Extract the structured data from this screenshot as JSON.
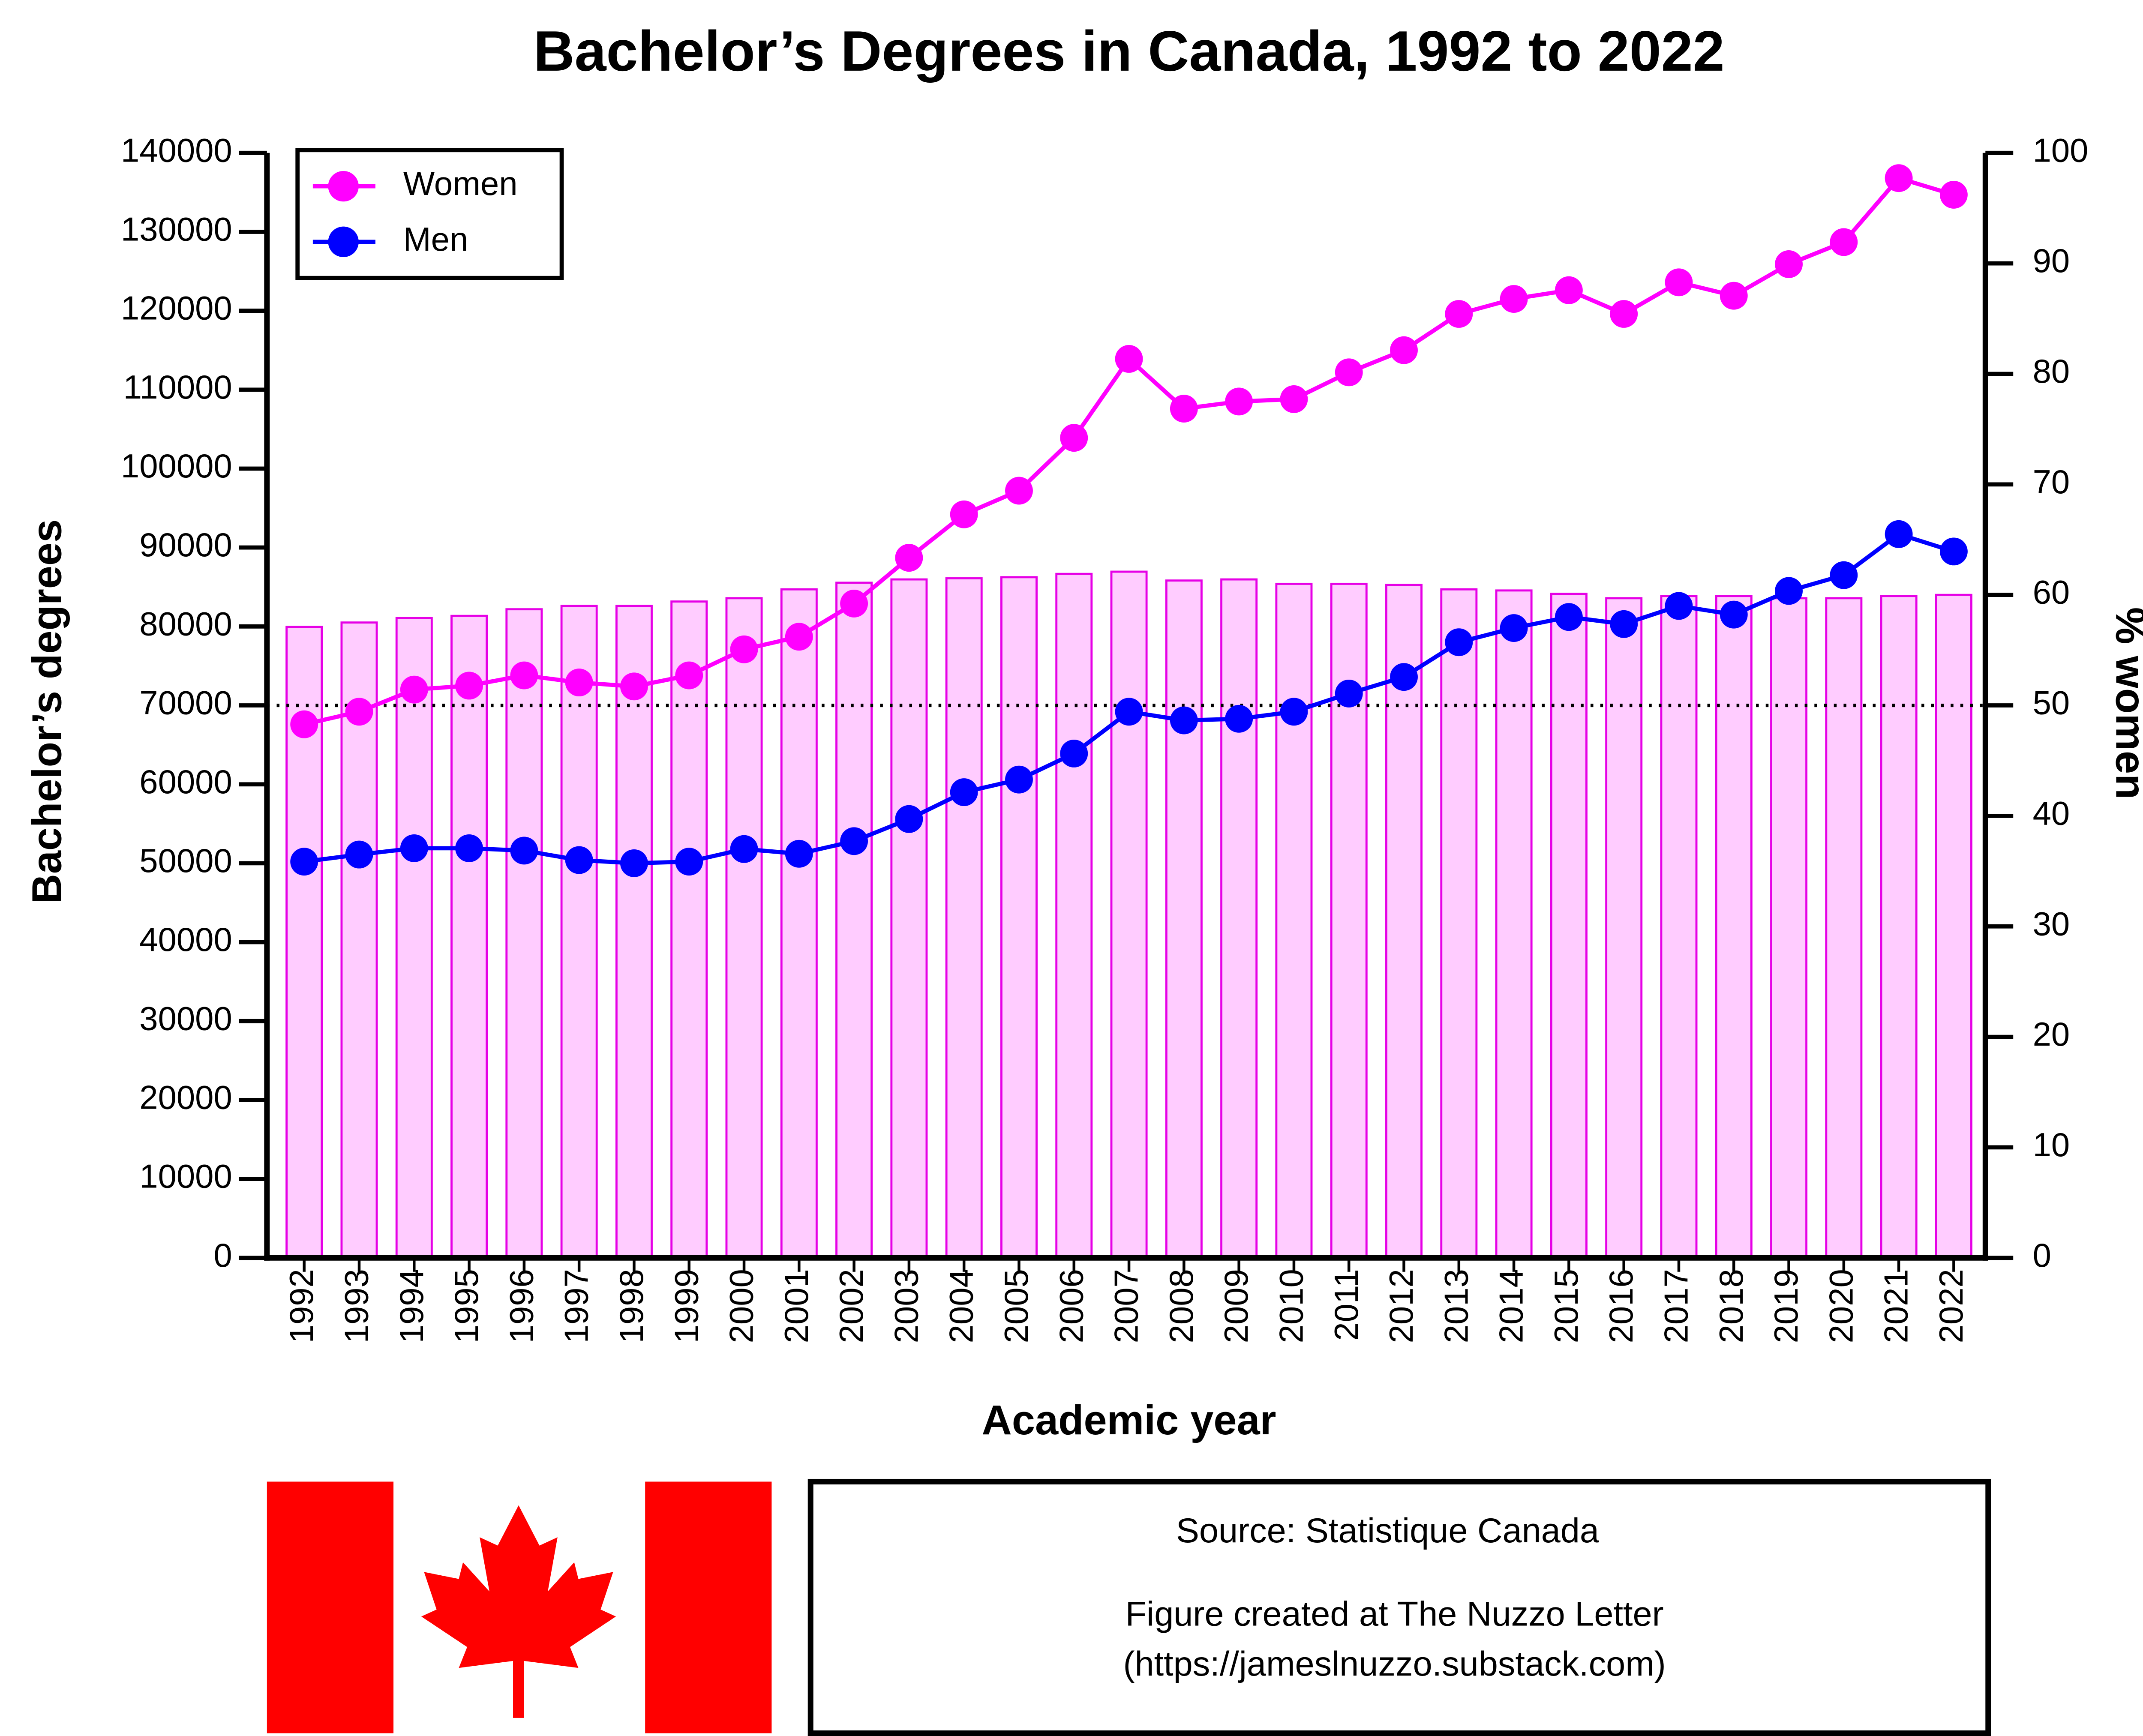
{
  "chart_data": {
    "type": "combo",
    "title": "Bachelor’s Degrees in Canada, 1992 to 2022",
    "x_label": "Academic year",
    "y_label": "Bachelor’s degrees",
    "y2_label": "% women",
    "categories": [
      "1992",
      "1993",
      "1994",
      "1995",
      "1996",
      "1997",
      "1998",
      "1999",
      "2000",
      "2001",
      "2002",
      "2003",
      "2004",
      "2005",
      "2006",
      "2007",
      "2008",
      "2009",
      "2010",
      "2011",
      "2012",
      "2013",
      "2014",
      "2015",
      "2016",
      "2017",
      "2018",
      "2019",
      "2020",
      "2021",
      "2022"
    ],
    "bars": {
      "axis": "y2",
      "color": "#ffccff",
      "edge_color": "#e600e6",
      "values": [
        57.1,
        57.5,
        57.9,
        58.1,
        58.7,
        59.0,
        59.0,
        59.4,
        59.7,
        60.5,
        61.1,
        61.4,
        61.5,
        61.6,
        61.9,
        62.1,
        61.3,
        61.4,
        61.0,
        61.0,
        60.9,
        60.5,
        60.4,
        60.1,
        59.7,
        59.9,
        59.9,
        59.7,
        59.7,
        59.9,
        60.0
      ]
    },
    "series": [
      {
        "name": "Women",
        "color": "#ff00ff",
        "values": [
          67600,
          69200,
          72000,
          72500,
          73800,
          72900,
          72400,
          73800,
          77100,
          78700,
          82900,
          88700,
          94200,
          97200,
          103900,
          113900,
          107600,
          108500,
          108800,
          112200,
          115000,
          119600,
          121500,
          122600,
          119600,
          123600,
          121900,
          125900,
          128700,
          136800,
          134700
        ]
      },
      {
        "name": "Men",
        "color": "#0000ff",
        "values": [
          50200,
          51100,
          51900,
          51900,
          51600,
          50400,
          50000,
          50200,
          51800,
          51200,
          52800,
          55600,
          59000,
          60600,
          63900,
          69200,
          68100,
          68300,
          69200,
          71500,
          73600,
          78000,
          79800,
          81200,
          80300,
          82600,
          81500,
          84500,
          86500,
          91700,
          89500
        ]
      }
    ],
    "reference_line": {
      "axis": "y2",
      "value": 50
    },
    "ylim": [
      0,
      140000
    ],
    "yticks": [
      0,
      10000,
      20000,
      30000,
      40000,
      50000,
      60000,
      70000,
      80000,
      90000,
      100000,
      110000,
      120000,
      130000,
      140000
    ],
    "y2lim": [
      0,
      100
    ],
    "y2ticks": [
      0,
      10,
      20,
      30,
      40,
      50,
      60,
      70,
      80,
      90,
      100
    ],
    "legend": "upper left",
    "notes": [
      "Source: Statistique Canada",
      "Figure created at The Nuzzo Letter",
      "(https://jameslnuzzo.substack.com)"
    ]
  }
}
